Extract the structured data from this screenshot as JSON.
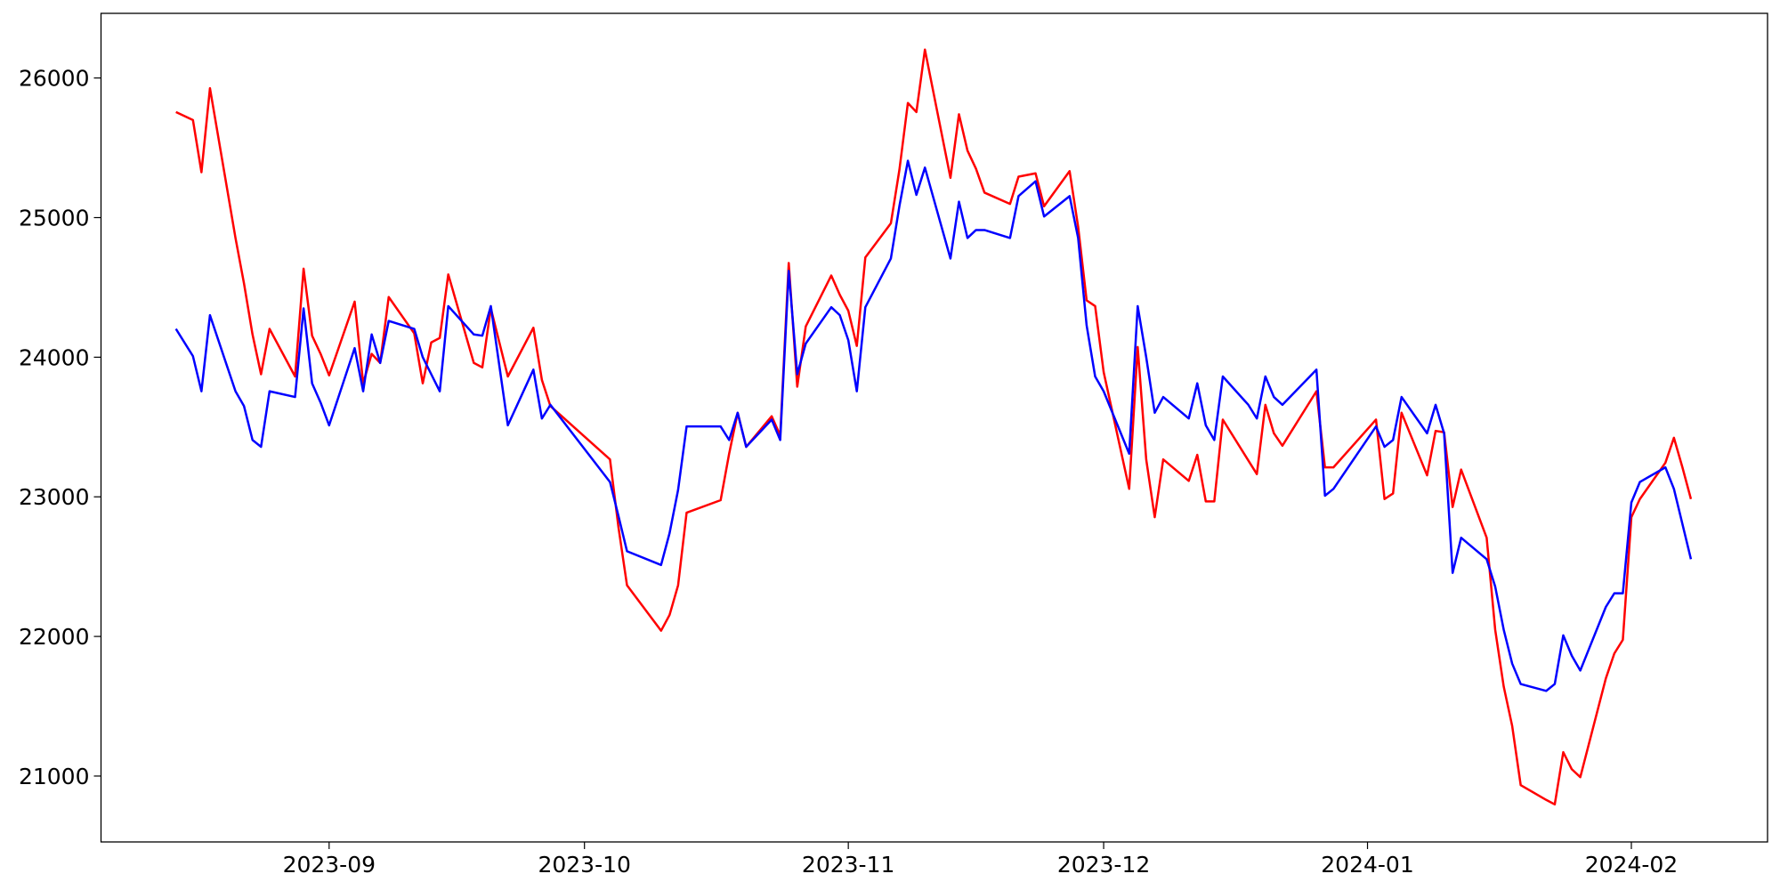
{
  "chart_data": {
    "type": "line",
    "x": [
      19583,
      19585,
      19586,
      19587,
      19590,
      19591,
      19592,
      19593,
      19594,
      19597,
      19598,
      19599,
      19600,
      19601,
      19604,
      19605,
      19606,
      19607,
      19608,
      19611,
      19612,
      19613,
      19614,
      19615,
      19618,
      19619,
      19620,
      19622,
      19625,
      19626,
      19627,
      19634,
      19635,
      19636,
      19640,
      19641,
      19642,
      19643,
      19647,
      19648,
      19649,
      19650,
      19653,
      19654,
      19655,
      19656,
      19657,
      19660,
      19661,
      19662,
      19663,
      19664,
      19667,
      19668,
      19669,
      19670,
      19671,
      19674,
      19675,
      19676,
      19677,
      19678,
      19681,
      19682,
      19684,
      19685,
      19688,
      19689,
      19690,
      19691,
      19692,
      19695,
      19696,
      19697,
      19698,
      19699,
      19702,
      19703,
      19704,
      19705,
      19706,
      19709,
      19710,
      19711,
      19712,
      19713,
      19717,
      19718,
      19719,
      19724,
      19725,
      19726,
      19727,
      19730,
      19731,
      19732,
      19733,
      19734,
      19737,
      19738,
      19739,
      19740,
      19741,
      19744,
      19745,
      19746,
      19747,
      19748,
      19751,
      19752,
      19753,
      19754,
      19755,
      19758,
      19759,
      19760,
      19761
    ],
    "series": [
      {
        "color": "#ff0000",
        "values": [
          25756,
          25699,
          25325,
          25927,
          24854,
          24528,
          24163,
          23878,
          24203,
          23862,
          24634,
          24154,
          24024,
          23870,
          24398,
          23813,
          24024,
          23959,
          24431,
          24171,
          23813,
          24106,
          24138,
          24593,
          23959,
          23927,
          24350,
          23862,
          24211,
          23837,
          23650,
          23268,
          22780,
          22366,
          22041,
          22154,
          22366,
          22886,
          22976,
          23309,
          23602,
          23358,
          23577,
          23439,
          24675,
          23789,
          24220,
          24585,
          24447,
          24333,
          24081,
          24715,
          24959,
          25341,
          25821,
          25756,
          26203,
          25285,
          25740,
          25480,
          25350,
          25179,
          25098,
          25293,
          25317,
          25081,
          25333,
          24935,
          24407,
          24366,
          23894,
          23057,
          24073,
          23268,
          22854,
          23268,
          23114,
          23301,
          22967,
          22967,
          23553,
          23260,
          23163,
          23659,
          23455,
          23366,
          23756,
          23211,
          23211,
          23553,
          22984,
          23024,
          23602,
          23154,
          23472,
          23463,
          22927,
          23195,
          22707,
          22049,
          21642,
          21358,
          20935,
          20829,
          20797,
          21171,
          21049,
          20992,
          21699,
          21878,
          21976,
          22854,
          22984,
          23244,
          23423,
          23211,
          22984
        ]
      },
      {
        "color": "#0000ff",
        "values": [
          24203,
          24008,
          23756,
          24301,
          23756,
          23650,
          23407,
          23358,
          23756,
          23715,
          24350,
          23813,
          23675,
          23512,
          24065,
          23756,
          24163,
          23959,
          24260,
          24203,
          24000,
          23878,
          23756,
          24366,
          24163,
          24154,
          24366,
          23512,
          23911,
          23561,
          23659,
          23106,
          22862,
          22610,
          22512,
          22740,
          23049,
          23504,
          23504,
          23407,
          23602,
          23358,
          23553,
          23407,
          24618,
          23878,
          24098,
          24358,
          24301,
          24122,
          23756,
          24358,
          24707,
          25081,
          25407,
          25163,
          25358,
          24707,
          25114,
          24854,
          24911,
          24911,
          24854,
          25154,
          25260,
          25008,
          25154,
          24854,
          24228,
          23862,
          23756,
          23309,
          24366,
          24000,
          23602,
          23715,
          23561,
          23813,
          23512,
          23407,
          23862,
          23659,
          23561,
          23862,
          23715,
          23659,
          23911,
          23008,
          23057,
          23504,
          23358,
          23407,
          23715,
          23455,
          23659,
          23455,
          22455,
          22707,
          22553,
          22358,
          22049,
          21805,
          21659,
          21610,
          21659,
          22008,
          21862,
          21756,
          22211,
          22309,
          22309,
          22959,
          23106,
          23211,
          23057,
          22805,
          22553
        ]
      }
    ],
    "xlim": [
      19574.2,
      19770.0
    ],
    "xticks": [
      {
        "value": 19601,
        "label": "2023-09"
      },
      {
        "value": 19631,
        "label": "2023-10"
      },
      {
        "value": 19662,
        "label": "2023-11"
      },
      {
        "value": 19692,
        "label": "2023-12"
      },
      {
        "value": 19723,
        "label": "2024-01"
      },
      {
        "value": 19754,
        "label": "2024-02"
      }
    ],
    "ylim": [
      20528,
      26463
    ],
    "yticks": [
      21000,
      22000,
      23000,
      24000,
      25000,
      26000
    ]
  }
}
